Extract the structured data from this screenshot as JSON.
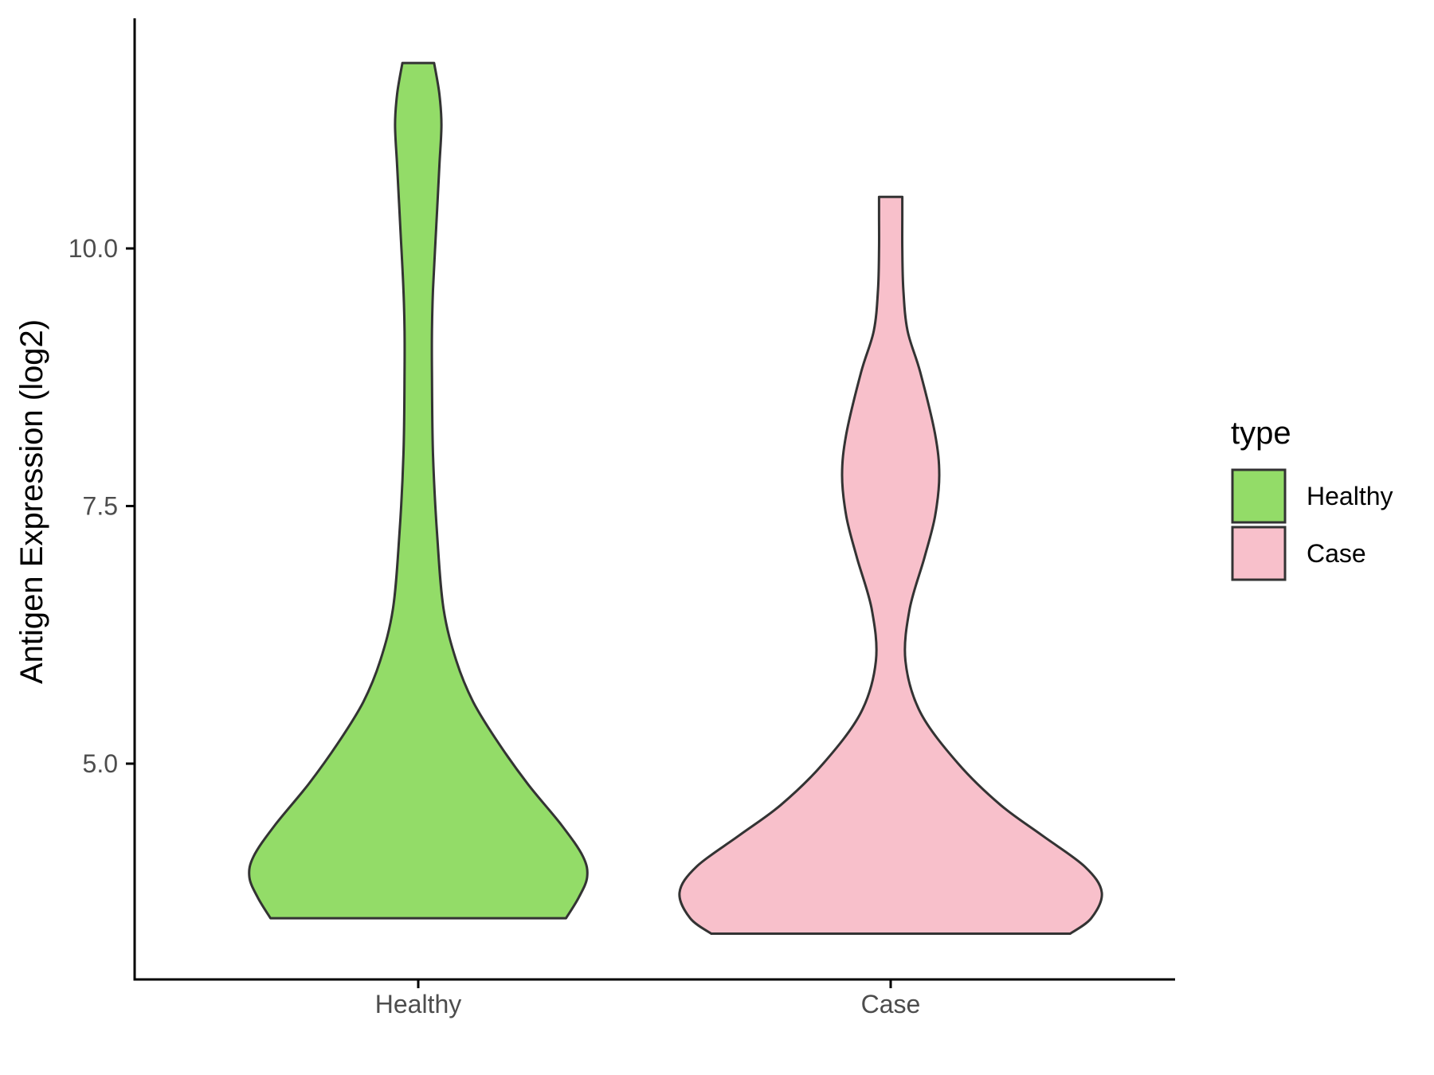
{
  "chart_data": {
    "type": "violin",
    "title": "",
    "xlabel": "",
    "ylabel": "Antigen Expression (log2)",
    "categories": [
      "Healthy",
      "Case"
    ],
    "ylim": [
      2.9,
      12.2
    ],
    "yticks": [
      5.0,
      7.5,
      10.0
    ],
    "ytick_labels": [
      "5.0",
      "7.5",
      "10.0"
    ],
    "grid": false,
    "legend": {
      "title": "type",
      "position": "right",
      "entries": [
        {
          "label": "Healthy",
          "color": "#93DC68"
        },
        {
          "label": "Case",
          "color": "#F8C0CB"
        }
      ]
    },
    "series": [
      {
        "name": "Healthy",
        "color": "#93DC68",
        "min": 3.5,
        "max": 11.8,
        "density": [
          [
            3.5,
            0.7
          ],
          [
            3.7,
            0.76
          ],
          [
            3.9,
            0.8
          ],
          [
            4.1,
            0.78
          ],
          [
            4.4,
            0.68
          ],
          [
            4.8,
            0.52
          ],
          [
            5.2,
            0.38
          ],
          [
            5.6,
            0.26
          ],
          [
            6.0,
            0.18
          ],
          [
            6.5,
            0.12
          ],
          [
            7.2,
            0.09
          ],
          [
            8.0,
            0.07
          ],
          [
            8.8,
            0.065
          ],
          [
            9.2,
            0.065
          ],
          [
            9.6,
            0.07
          ],
          [
            10.2,
            0.085
          ],
          [
            10.8,
            0.1
          ],
          [
            11.2,
            0.11
          ],
          [
            11.5,
            0.1
          ],
          [
            11.8,
            0.075
          ]
        ]
      },
      {
        "name": "Case",
        "color": "#F8C0CB",
        "min": 3.35,
        "max": 10.5,
        "density": [
          [
            3.35,
            0.85
          ],
          [
            3.5,
            0.95
          ],
          [
            3.75,
            1.0
          ],
          [
            4.0,
            0.92
          ],
          [
            4.3,
            0.72
          ],
          [
            4.6,
            0.52
          ],
          [
            5.0,
            0.32
          ],
          [
            5.5,
            0.14
          ],
          [
            6.0,
            0.07
          ],
          [
            6.5,
            0.09
          ],
          [
            7.0,
            0.16
          ],
          [
            7.4,
            0.21
          ],
          [
            7.8,
            0.23
          ],
          [
            8.2,
            0.21
          ],
          [
            8.8,
            0.14
          ],
          [
            9.2,
            0.08
          ],
          [
            9.6,
            0.06
          ],
          [
            10.0,
            0.055
          ],
          [
            10.3,
            0.055
          ],
          [
            10.5,
            0.055
          ]
        ]
      }
    ]
  }
}
